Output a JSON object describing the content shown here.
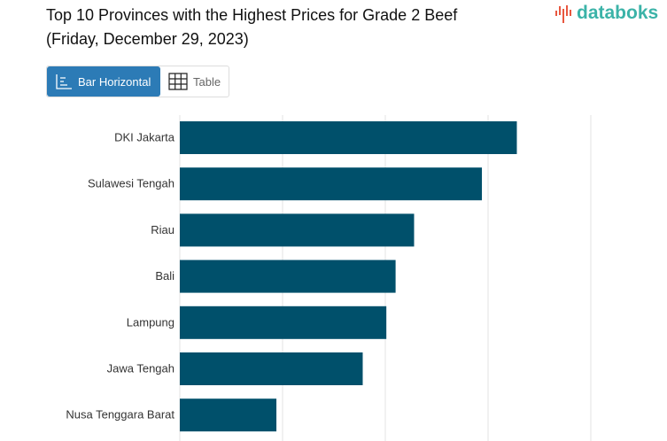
{
  "header": {
    "title_line1": "Top 10 Provinces with the Highest Prices for Grade 2 Beef",
    "title_line2": "(Friday, December 29, 2023)",
    "logo": "databoks"
  },
  "toggle": {
    "bar_label": "Bar Horizontal",
    "table_label": "Table"
  },
  "colors": {
    "bar": "#00506b",
    "active": "#2c7bb6",
    "logo": "#3bb3a8"
  },
  "chart_data": {
    "type": "bar",
    "orientation": "horizontal",
    "title": "Top 10 Provinces with the Highest Prices for Grade 2 Beef (Friday, December 29, 2023)",
    "categories": [
      "DKI Jakarta",
      "Sulawesi Tengah",
      "Riau",
      "Bali",
      "Lampung",
      "Jawa Tengah",
      "Nusa Tenggara Barat"
    ],
    "values": [
      3.28,
      2.94,
      2.28,
      2.1,
      2.01,
      1.78,
      0.94
    ],
    "units_note": "relative gridline units (axis ticks not visible)",
    "xlim": [
      0,
      4
    ],
    "grid": true
  }
}
